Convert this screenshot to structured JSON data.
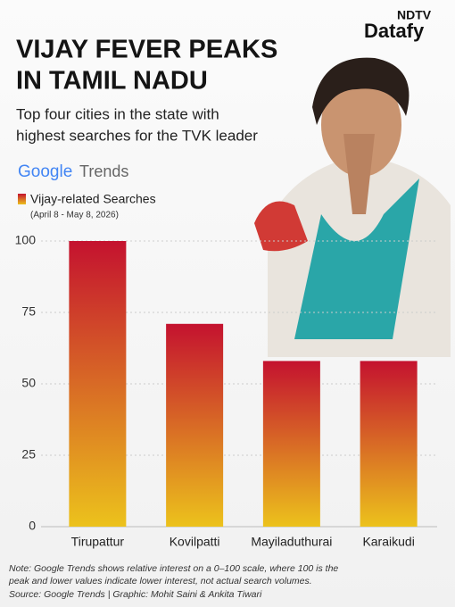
{
  "brand": {
    "top": "NDTV",
    "bottom": "Datafy"
  },
  "chart_data": {
    "type": "bar",
    "title": [
      "VIJAY FEVER PEAKS",
      "IN TAMIL NADU"
    ],
    "subtitle": [
      "Top four cities in the state with",
      "highest searches for the TVK leader"
    ],
    "source_logo": {
      "brand": "Google",
      "product": "Trends"
    },
    "date_range": "(April 8 - May 8, 2026)",
    "categories": [
      "Tirupattur",
      "Kovilpatti",
      "Mayiladuthurai",
      "Karaikudi"
    ],
    "series": [
      {
        "name": "Vijay-related Searches",
        "color_top": "#c4122f",
        "color_bottom": "#ecc21c",
        "values": [
          100,
          71,
          58,
          58
        ]
      }
    ],
    "ylim": [
      0,
      100
    ],
    "yticks": [
      0,
      25,
      50,
      75,
      100
    ],
    "grid": true,
    "note": [
      "Note: Google Trends shows relative interest on a 0–100 scale, where 100 is the",
      "peak and lower values indicate lower interest, not actual search volumes."
    ],
    "source": "Source: Google Trends | Graphic: Mohit Saini & Ankita Tiwari"
  }
}
